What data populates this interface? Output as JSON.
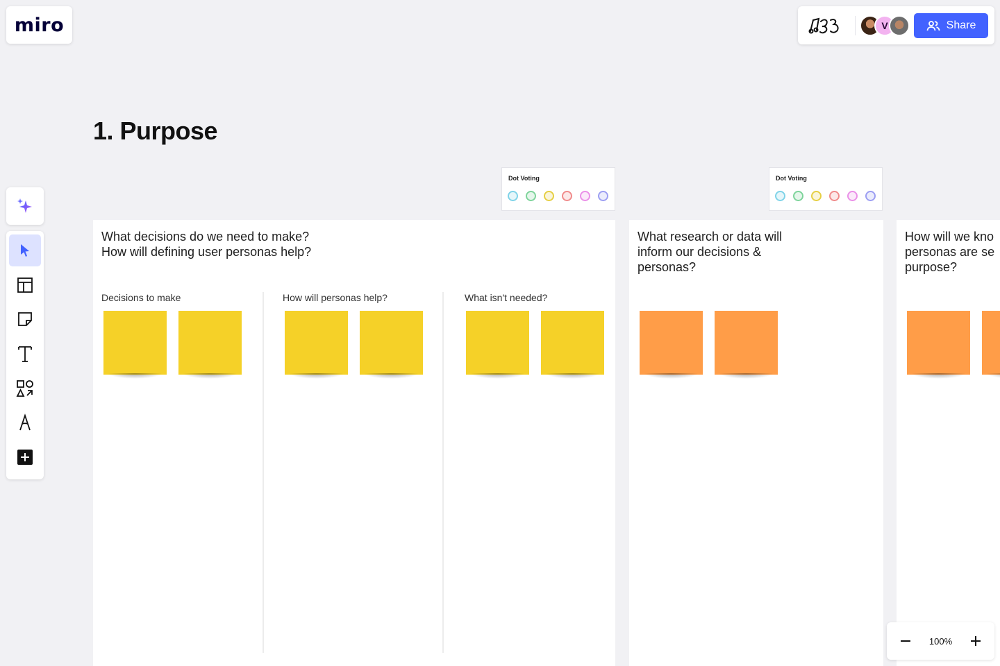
{
  "app": {
    "logo": "miro"
  },
  "header": {
    "reactions_icon": "reactions-icon",
    "avatars": [
      {
        "name": "user-avatar-1",
        "initial": ""
      },
      {
        "name": "user-avatar-2",
        "initial": "V"
      },
      {
        "name": "user-avatar-3",
        "initial": ""
      }
    ],
    "share_label": "Share"
  },
  "section": {
    "title": "1. Purpose"
  },
  "dot_voting": [
    {
      "title": "Dot Voting",
      "colors": [
        "#7fd3e8",
        "#7ed49b",
        "#e6cf44",
        "#f08b8b",
        "#ea90e8",
        "#9c9ef2"
      ]
    },
    {
      "title": "Dot Voting",
      "colors": [
        "#7fd3e8",
        "#7ed49b",
        "#e6cf44",
        "#f08b8b",
        "#ea90e8",
        "#9c9ef2"
      ]
    }
  ],
  "frames": [
    {
      "question": "What decisions do we need to make?\nHow will defining user personas help?",
      "columns": [
        "Decisions to make",
        "How will personas help?",
        "What isn't needed?"
      ]
    },
    {
      "question": "What research or data will\ninform our decisions &\npersonas?"
    },
    {
      "question": "How will we kno\npersonas are se\npurpose?"
    }
  ],
  "colors": {
    "accent": "#4262ff",
    "sticky_yellow": "#f5d128",
    "sticky_orange": "#ff9d48",
    "tool_active": "#dde2ff"
  },
  "zoom": {
    "value": "100%"
  }
}
